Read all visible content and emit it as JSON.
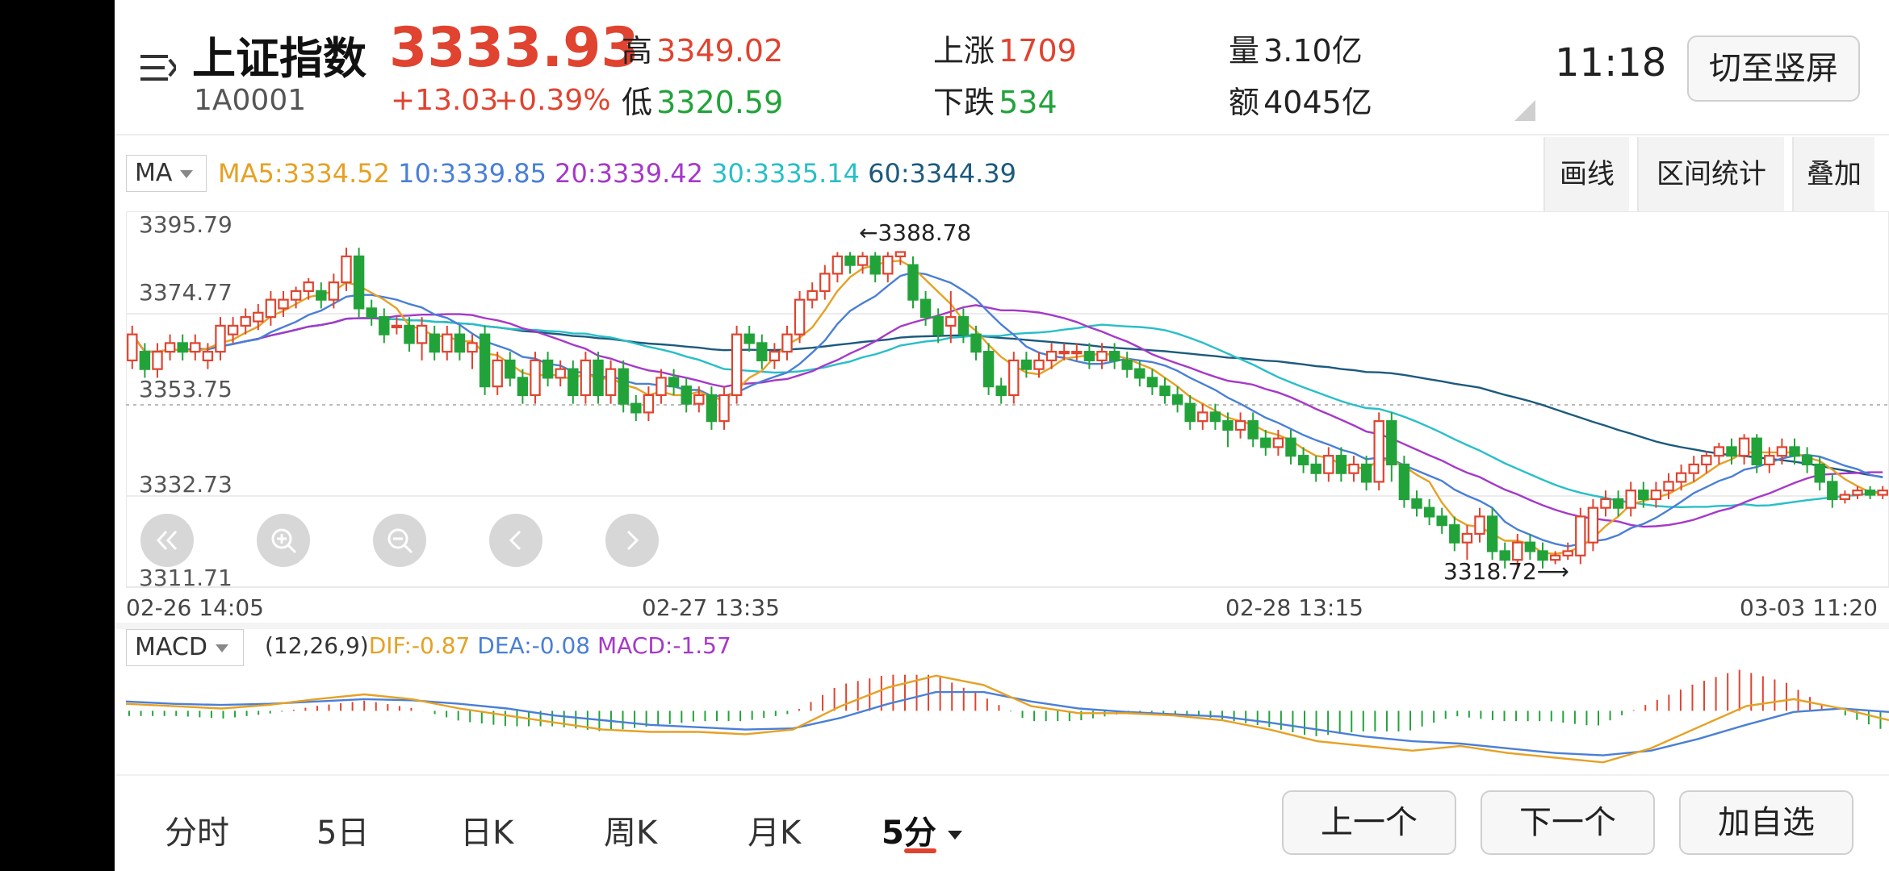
{
  "header": {
    "index_name": "上证指数",
    "index_code": "1A0001",
    "price": "3333.93",
    "change": "+13.03",
    "change_pct": "+0.39%",
    "high_label": "高",
    "high_value": "3349.02",
    "low_label": "低",
    "low_value": "3320.59",
    "up_label": "上涨",
    "up_value": "1709",
    "down_label": "下跌",
    "down_value": "534",
    "volume_label": "量",
    "volume_value": "3.10亿",
    "amount_label": "额",
    "amount_value": "4045亿",
    "time": "11:18",
    "portrait_button": "切至竖屏"
  },
  "indicator_bar": {
    "ma_selector": "MA",
    "ma5": "MA5:3334.52",
    "ma10": "10:3339.85",
    "ma20": "20:3339.42",
    "ma30": "30:3335.14",
    "ma60": "60:3344.39",
    "tool_draw": "画线",
    "tool_range": "区间统计",
    "tool_overlay": "叠加"
  },
  "colors": {
    "ma5": "#e6a124",
    "ma10": "#4a7fd6",
    "ma20": "#a638c9",
    "ma30": "#27bfc7",
    "ma60": "#1c5a7e",
    "up": "#e0432f",
    "down": "#22a33a"
  },
  "price_axis": [
    "3395.79",
    "3374.77",
    "3353.75",
    "3332.73",
    "3311.71"
  ],
  "time_axis": [
    "02-26 14:05",
    "02-27 13:35",
    "02-28 13:15",
    "03-03 11:20"
  ],
  "annotations": {
    "max_label": "←3388.78",
    "min_label": "3318.72⟶"
  },
  "nav_icons": [
    "rewind-icon",
    "zoom-in-icon",
    "zoom-out-icon",
    "chevron-left-icon",
    "chevron-right-icon"
  ],
  "macd_bar": {
    "selector": "MACD",
    "params": "(12,26,9)",
    "dif": "DIF:-0.87",
    "dea": "DEA:-0.08",
    "macd": "MACD:-1.57"
  },
  "bottom_tabs": [
    "分时",
    "5日",
    "日K",
    "周K",
    "月K",
    "5分"
  ],
  "bottom_buttons": {
    "prev": "上一个",
    "next": "下一个",
    "add": "加自选"
  },
  "chart_data": {
    "type": "candlestick",
    "ylim": [
      3311.71,
      3395.79
    ],
    "max_marker": 3388.78,
    "min_marker": 3318.72,
    "candles": [
      [
        3364,
        3370,
        3362,
        3372
      ],
      [
        3366,
        3362,
        3360,
        3368
      ],
      [
        3362,
        3366,
        3360,
        3368
      ],
      [
        3366,
        3368,
        3364,
        3370
      ],
      [
        3368,
        3366,
        3364,
        3370
      ],
      [
        3366,
        3368,
        3364,
        3370
      ],
      [
        3364,
        3366,
        3362,
        3368
      ],
      [
        3366,
        3372,
        3364,
        3374
      ],
      [
        3370,
        3372,
        3368,
        3374
      ],
      [
        3372,
        3374,
        3370,
        3376
      ],
      [
        3373,
        3375,
        3371,
        3377
      ],
      [
        3374,
        3378,
        3372,
        3380
      ],
      [
        3376,
        3378,
        3374,
        3380
      ],
      [
        3378,
        3380,
        3376,
        3381
      ],
      [
        3380,
        3382,
        3378,
        3383
      ],
      [
        3380,
        3378,
        3376,
        3382
      ],
      [
        3378,
        3382,
        3376,
        3384
      ],
      [
        3382,
        3388,
        3380,
        3390
      ],
      [
        3388,
        3376,
        3374,
        3390
      ],
      [
        3376,
        3374,
        3372,
        3378
      ],
      [
        3374,
        3370,
        3368,
        3376
      ],
      [
        3372,
        3372,
        3370,
        3374
      ],
      [
        3372,
        3368,
        3366,
        3374
      ],
      [
        3368,
        3372,
        3364,
        3374
      ],
      [
        3370,
        3366,
        3364,
        3372
      ],
      [
        3366,
        3370,
        3364,
        3372
      ],
      [
        3370,
        3366,
        3364,
        3372
      ],
      [
        3366,
        3368,
        3362,
        3370
      ],
      [
        3370,
        3358,
        3356,
        3372
      ],
      [
        3358,
        3364,
        3356,
        3366
      ],
      [
        3364,
        3360,
        3358,
        3366
      ],
      [
        3360,
        3356,
        3354,
        3362
      ],
      [
        3356,
        3364,
        3354,
        3366
      ],
      [
        3364,
        3360,
        3358,
        3366
      ],
      [
        3360,
        3362,
        3358,
        3364
      ],
      [
        3362,
        3356,
        3354,
        3364
      ],
      [
        3356,
        3364,
        3354,
        3366
      ],
      [
        3364,
        3356,
        3354,
        3366
      ],
      [
        3356,
        3362,
        3354,
        3364
      ],
      [
        3362,
        3354,
        3352,
        3364
      ],
      [
        3354,
        3352,
        3350,
        3356
      ],
      [
        3352,
        3356,
        3350,
        3358
      ],
      [
        3356,
        3360,
        3354,
        3362
      ],
      [
        3360,
        3358,
        3356,
        3362
      ],
      [
        3358,
        3354,
        3352,
        3360
      ],
      [
        3354,
        3356,
        3352,
        3358
      ],
      [
        3356,
        3350,
        3348,
        3358
      ],
      [
        3350,
        3356,
        3348,
        3358
      ],
      [
        3356,
        3370,
        3354,
        3372
      ],
      [
        3370,
        3368,
        3366,
        3372
      ],
      [
        3368,
        3364,
        3362,
        3370
      ],
      [
        3364,
        3366,
        3362,
        3368
      ],
      [
        3366,
        3370,
        3364,
        3372
      ],
      [
        3370,
        3378,
        3368,
        3380
      ],
      [
        3378,
        3380,
        3376,
        3382
      ],
      [
        3380,
        3384,
        3378,
        3386
      ],
      [
        3384,
        3388,
        3382,
        3389
      ],
      [
        3388,
        3386,
        3384,
        3389
      ],
      [
        3386,
        3388,
        3384,
        3389
      ],
      [
        3388,
        3384,
        3382,
        3389
      ],
      [
        3384,
        3388,
        3382,
        3389
      ],
      [
        3388,
        3389,
        3386,
        3389
      ],
      [
        3386,
        3378,
        3376,
        3388
      ],
      [
        3378,
        3374,
        3372,
        3380
      ],
      [
        3374,
        3370,
        3368,
        3376
      ],
      [
        3372,
        3374,
        3368,
        3380
      ],
      [
        3374,
        3370,
        3368,
        3376
      ],
      [
        3370,
        3366,
        3364,
        3372
      ],
      [
        3366,
        3358,
        3356,
        3368
      ],
      [
        3358,
        3356,
        3354,
        3360
      ],
      [
        3356,
        3364,
        3354,
        3366
      ],
      [
        3364,
        3362,
        3360,
        3366
      ],
      [
        3362,
        3364,
        3360,
        3366
      ],
      [
        3364,
        3366,
        3362,
        3368
      ],
      [
        3366,
        3366,
        3364,
        3368
      ],
      [
        3366,
        3366,
        3364,
        3368
      ],
      [
        3366,
        3364,
        3362,
        3368
      ],
      [
        3364,
        3366,
        3362,
        3368
      ],
      [
        3366,
        3364,
        3362,
        3368
      ],
      [
        3364,
        3362,
        3360,
        3366
      ],
      [
        3362,
        3360,
        3358,
        3364
      ],
      [
        3360,
        3358,
        3356,
        3362
      ],
      [
        3358,
        3356,
        3354,
        3360
      ],
      [
        3356,
        3354,
        3352,
        3358
      ],
      [
        3354,
        3350,
        3348,
        3356
      ],
      [
        3350,
        3352,
        3348,
        3354
      ],
      [
        3352,
        3350,
        3348,
        3354
      ],
      [
        3350,
        3348,
        3344,
        3352
      ],
      [
        3348,
        3350,
        3346,
        3352
      ],
      [
        3350,
        3346,
        3344,
        3352
      ],
      [
        3346,
        3344,
        3342,
        3348
      ],
      [
        3344,
        3346,
        3342,
        3348
      ],
      [
        3346,
        3342,
        3340,
        3348
      ],
      [
        3342,
        3340,
        3338,
        3344
      ],
      [
        3340,
        3338,
        3336,
        3342
      ],
      [
        3338,
        3342,
        3336,
        3344
      ],
      [
        3342,
        3338,
        3336,
        3344
      ],
      [
        3338,
        3340,
        3336,
        3342
      ],
      [
        3340,
        3336,
        3334,
        3342
      ],
      [
        3336,
        3350,
        3334,
        3352
      ],
      [
        3350,
        3340,
        3336,
        3352
      ],
      [
        3340,
        3332,
        3330,
        3342
      ],
      [
        3332,
        3330,
        3328,
        3334
      ],
      [
        3330,
        3328,
        3326,
        3332
      ],
      [
        3328,
        3326,
        3324,
        3330
      ],
      [
        3326,
        3322,
        3320,
        3328
      ],
      [
        3322,
        3324,
        3318,
        3326
      ],
      [
        3324,
        3328,
        3322,
        3330
      ],
      [
        3328,
        3320,
        3318,
        3330
      ],
      [
        3320,
        3318,
        3316,
        3322
      ],
      [
        3318,
        3322,
        3316,
        3324
      ],
      [
        3322,
        3320,
        3318,
        3324
      ],
      [
        3320,
        3318,
        3316,
        3322
      ],
      [
        3318,
        3319,
        3317,
        3320
      ],
      [
        3319,
        3320,
        3318,
        3322
      ],
      [
        3319,
        3328,
        3317,
        3330
      ],
      [
        3322,
        3330,
        3320,
        3332
      ],
      [
        3330,
        3332,
        3328,
        3334
      ],
      [
        3332,
        3330,
        3328,
        3334
      ],
      [
        3330,
        3334,
        3328,
        3336
      ],
      [
        3334,
        3332,
        3330,
        3336
      ],
      [
        3332,
        3334,
        3330,
        3336
      ],
      [
        3334,
        3336,
        3332,
        3338
      ],
      [
        3336,
        3338,
        3334,
        3340
      ],
      [
        3338,
        3340,
        3336,
        3342
      ],
      [
        3340,
        3342,
        3338,
        3343
      ],
      [
        3342,
        3344,
        3340,
        3345
      ],
      [
        3344,
        3342,
        3340,
        3346
      ],
      [
        3342,
        3346,
        3340,
        3347
      ],
      [
        3346,
        3340,
        3338,
        3347
      ],
      [
        3340,
        3342,
        3338,
        3344
      ],
      [
        3342,
        3344,
        3340,
        3346
      ],
      [
        3344,
        3342,
        3340,
        3346
      ],
      [
        3342,
        3340,
        3338,
        3344
      ],
      [
        3340,
        3336,
        3334,
        3342
      ],
      [
        3336,
        3332,
        3330,
        3338
      ],
      [
        3332,
        3333,
        3331,
        3334
      ],
      [
        3333,
        3334,
        3332,
        3335
      ],
      [
        3334,
        3333,
        3332,
        3335
      ],
      [
        3333,
        3334,
        3332,
        3335
      ]
    ],
    "macd_series": {
      "dif": [
        0.6,
        0.4,
        0.2,
        0.5,
        1.0,
        1.4,
        1.0,
        0.2,
        -0.4,
        -1.0,
        -1.6,
        -1.8,
        -1.8,
        -2.0,
        -1.6,
        0.4,
        2.0,
        3.0,
        2.2,
        0.4,
        -0.2,
        -0.2,
        -0.4,
        -0.8,
        -1.6,
        -2.6,
        -3.0,
        -3.4,
        -3.0,
        -3.6,
        -4.0,
        -4.4,
        -3.2,
        -1.4,
        0.4,
        1.0,
        0.2,
        -0.8
      ],
      "dea": [
        0.8,
        0.6,
        0.5,
        0.6,
        0.8,
        1.0,
        0.9,
        0.6,
        0.2,
        -0.4,
        -0.8,
        -1.2,
        -1.4,
        -1.6,
        -1.5,
        -0.6,
        0.6,
        1.6,
        1.6,
        0.8,
        0.2,
        -0.1,
        -0.3,
        -0.5,
        -1.0,
        -1.6,
        -2.2,
        -2.6,
        -2.8,
        -3.2,
        -3.6,
        -3.8,
        -3.4,
        -2.4,
        -1.2,
        -0.1,
        0.2,
        -0.1
      ]
    }
  }
}
